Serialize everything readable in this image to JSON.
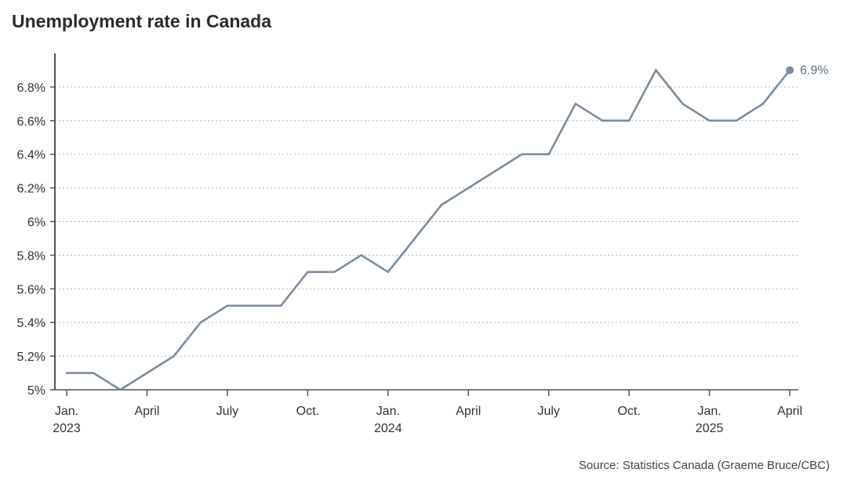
{
  "chart_data": {
    "type": "line",
    "title": "Unemployment rate in Canada",
    "source": "Source: Statistics Canada (Graeme Bruce/CBC)",
    "ylim": [
      5,
      7
    ],
    "y_ticks": [
      5,
      5.2,
      5.4,
      5.6,
      5.8,
      6,
      6.2,
      6.4,
      6.6,
      6.8
    ],
    "y_tick_labels": [
      "5%",
      "5.2%",
      "5.4%",
      "5.6%",
      "5.8%",
      "6%",
      "6.2%",
      "6.4%",
      "6.6%",
      "6.8%"
    ],
    "x_ticks": [
      {
        "month": 0,
        "label": "Jan.",
        "year": "2023"
      },
      {
        "month": 3,
        "label": "April",
        "year": ""
      },
      {
        "month": 6,
        "label": "July",
        "year": ""
      },
      {
        "month": 9,
        "label": "Oct.",
        "year": ""
      },
      {
        "month": 12,
        "label": "Jan.",
        "year": "2024"
      },
      {
        "month": 15,
        "label": "April",
        "year": ""
      },
      {
        "month": 18,
        "label": "July",
        "year": ""
      },
      {
        "month": 21,
        "label": "Oct.",
        "year": ""
      },
      {
        "month": 24,
        "label": "Jan.",
        "year": "2025"
      },
      {
        "month": 27,
        "label": "April",
        "year": ""
      }
    ],
    "x": [
      "2023-01",
      "2023-02",
      "2023-03",
      "2023-04",
      "2023-05",
      "2023-06",
      "2023-07",
      "2023-08",
      "2023-09",
      "2023-10",
      "2023-11",
      "2023-12",
      "2024-01",
      "2024-02",
      "2024-03",
      "2024-04",
      "2024-05",
      "2024-06",
      "2024-07",
      "2024-08",
      "2024-09",
      "2024-10",
      "2024-11",
      "2024-12",
      "2025-01",
      "2025-02",
      "2025-03",
      "2025-04"
    ],
    "series": [
      {
        "values": [
          5.1,
          5.1,
          5.0,
          5.1,
          5.2,
          5.4,
          5.5,
          5.5,
          5.5,
          5.7,
          5.7,
          5.8,
          5.7,
          5.9,
          6.1,
          6.2,
          6.3,
          6.4,
          6.4,
          6.7,
          6.6,
          6.6,
          6.9,
          6.7,
          6.6,
          6.6,
          6.7,
          6.9
        ],
        "color": "#7a8d9e"
      }
    ],
    "end_label": "6.9%",
    "grid": true,
    "grid_style": "dotted-horizontal"
  }
}
